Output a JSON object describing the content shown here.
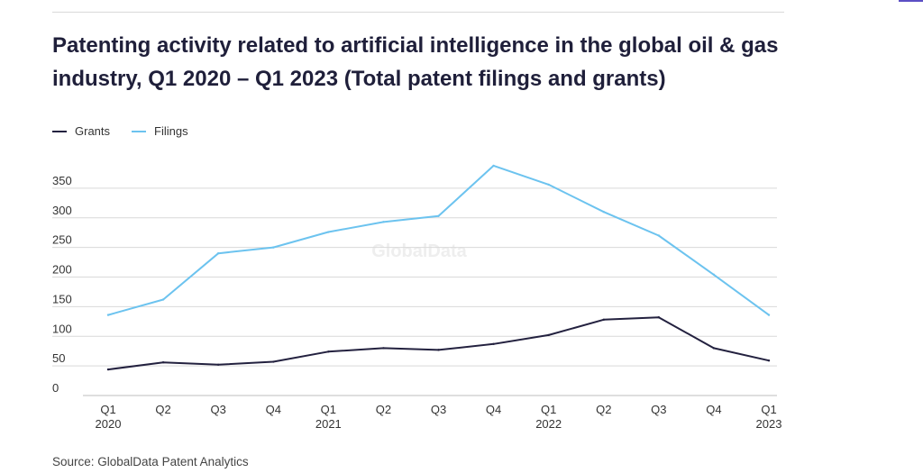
{
  "title": "Patenting activity related to artificial intelligence in the global oil & gas industry, Q1 2020 – Q1 2023 (Total patent filings and grants)",
  "source": "Source: GlobalData Patent Analytics",
  "watermark": "GlobalData",
  "colors": {
    "grants": "#23213f",
    "filings": "#6cc3ef",
    "grid": "#d9d9d9",
    "text": "#333333"
  },
  "chart_data": {
    "type": "line",
    "title": "Patenting activity related to artificial intelligence in the global oil & gas industry, Q1 2020 – Q1 2023 (Total patent filings and grants)",
    "categories": [
      [
        "Q1",
        "2020"
      ],
      [
        "Q2",
        ""
      ],
      [
        "Q3",
        ""
      ],
      [
        "Q4",
        ""
      ],
      [
        "Q1",
        "2021"
      ],
      [
        "Q2",
        ""
      ],
      [
        "Q3",
        ""
      ],
      [
        "Q4",
        ""
      ],
      [
        "Q1",
        "2022"
      ],
      [
        "Q2",
        ""
      ],
      [
        "Q3",
        ""
      ],
      [
        "Q4",
        ""
      ],
      [
        "Q1",
        "2023"
      ]
    ],
    "series": [
      {
        "name": "Grants",
        "values": [
          44,
          56,
          52,
          57,
          74,
          80,
          77,
          87,
          102,
          128,
          132,
          80,
          59
        ]
      },
      {
        "name": "Filings",
        "values": [
          136,
          162,
          240,
          250,
          276,
          293,
          303,
          388,
          356,
          310,
          270,
          204,
          136
        ]
      }
    ],
    "yticks": [
      0,
      50,
      100,
      150,
      200,
      250,
      300,
      350
    ],
    "ylim": [
      0,
      400
    ],
    "xlabel": "",
    "ylabel": "",
    "grid": true,
    "legend_position": "top-left"
  }
}
